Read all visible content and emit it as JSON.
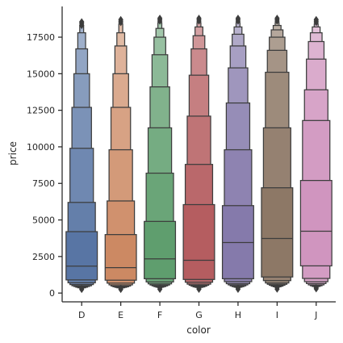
{
  "chart_data": {
    "type": "boxen",
    "xlabel": "color",
    "ylabel": "price",
    "categories": [
      "D",
      "E",
      "F",
      "G",
      "H",
      "I",
      "J"
    ],
    "colors": [
      "#5875a4",
      "#cc8963",
      "#5f9e6e",
      "#b55d60",
      "#857aab",
      "#8d7866",
      "#d095bf"
    ],
    "y_ticks": [
      0,
      2500,
      5000,
      7500,
      10000,
      12500,
      15000,
      17500
    ],
    "y_tick_labels": [
      "0",
      "2500",
      "5000",
      "7500",
      "10000",
      "12500",
      "15000",
      "17500"
    ],
    "ylim": [
      -600,
      19600
    ],
    "grid": false,
    "levels": [
      {
        "color": "D",
        "median": 1840,
        "boxes": [
          [
            900,
            4200
          ],
          [
            700,
            6200
          ],
          [
            580,
            9900
          ],
          [
            500,
            12700
          ],
          [
            450,
            15000
          ],
          [
            400,
            16700
          ],
          [
            360,
            17800
          ],
          [
            340,
            18300
          ]
        ],
        "outliers_high": [
          18300,
          18400,
          18500,
          18550
        ],
        "outliers_low": [
          330,
          250
        ]
      },
      {
        "color": "E",
        "median": 1740,
        "boxes": [
          [
            880,
            4000
          ],
          [
            680,
            6300
          ],
          [
            560,
            9800
          ],
          [
            480,
            12700
          ],
          [
            430,
            15000
          ],
          [
            390,
            16900
          ],
          [
            360,
            17800
          ],
          [
            340,
            18400
          ]
        ],
        "outliers_high": [
          18500,
          18600,
          18700
        ],
        "outliers_low": [
          330,
          250
        ]
      },
      {
        "color": "F",
        "median": 2340,
        "boxes": [
          [
            980,
            4900
          ],
          [
            760,
            8200
          ],
          [
            630,
            11300
          ],
          [
            550,
            14100
          ],
          [
            490,
            16300
          ],
          [
            440,
            17500
          ],
          [
            400,
            18100
          ],
          [
            370,
            18500
          ]
        ],
        "outliers_high": [
          18600,
          18700,
          18790
        ],
        "outliers_low": [
          360,
          260
        ]
      },
      {
        "color": "G",
        "median": 2240,
        "boxes": [
          [
            930,
            6050
          ],
          [
            740,
            8800
          ],
          [
            610,
            12100
          ],
          [
            530,
            14900
          ],
          [
            470,
            16700
          ],
          [
            420,
            17600
          ],
          [
            390,
            18200
          ],
          [
            360,
            18500
          ]
        ],
        "outliers_high": [
          18600,
          18700,
          18790
        ],
        "outliers_low": [
          340,
          260
        ]
      },
      {
        "color": "H",
        "median": 3460,
        "boxes": [
          [
            980,
            5980
          ],
          [
            780,
            9800
          ],
          [
            640,
            13000
          ],
          [
            560,
            15400
          ],
          [
            490,
            16900
          ],
          [
            440,
            17700
          ],
          [
            400,
            18200
          ],
          [
            370,
            18500
          ]
        ],
        "outliers_high": [
          18600,
          18700,
          18790
        ],
        "outliers_low": [
          350,
          260
        ]
      },
      {
        "color": "I",
        "median": 3730,
        "boxes": [
          [
            1100,
            7200
          ],
          [
            850,
            11300
          ],
          [
            690,
            15100
          ],
          [
            600,
            16600
          ],
          [
            530,
            17500
          ],
          [
            470,
            18000
          ],
          [
            430,
            18300
          ],
          [
            400,
            18500
          ]
        ],
        "outliers_high": [
          18600,
          18700,
          18790
        ],
        "outliers_low": [
          370,
          270
        ]
      },
      {
        "color": "J",
        "median": 4230,
        "boxes": [
          [
            1860,
            7700
          ],
          [
            1000,
            11800
          ],
          [
            780,
            13900
          ],
          [
            650,
            16000
          ],
          [
            560,
            17200
          ],
          [
            500,
            17800
          ],
          [
            450,
            18200
          ],
          [
            420,
            18400
          ]
        ],
        "outliers_high": [
          18500,
          18600,
          18700
        ],
        "outliers_low": [
          380,
          290
        ]
      }
    ]
  }
}
